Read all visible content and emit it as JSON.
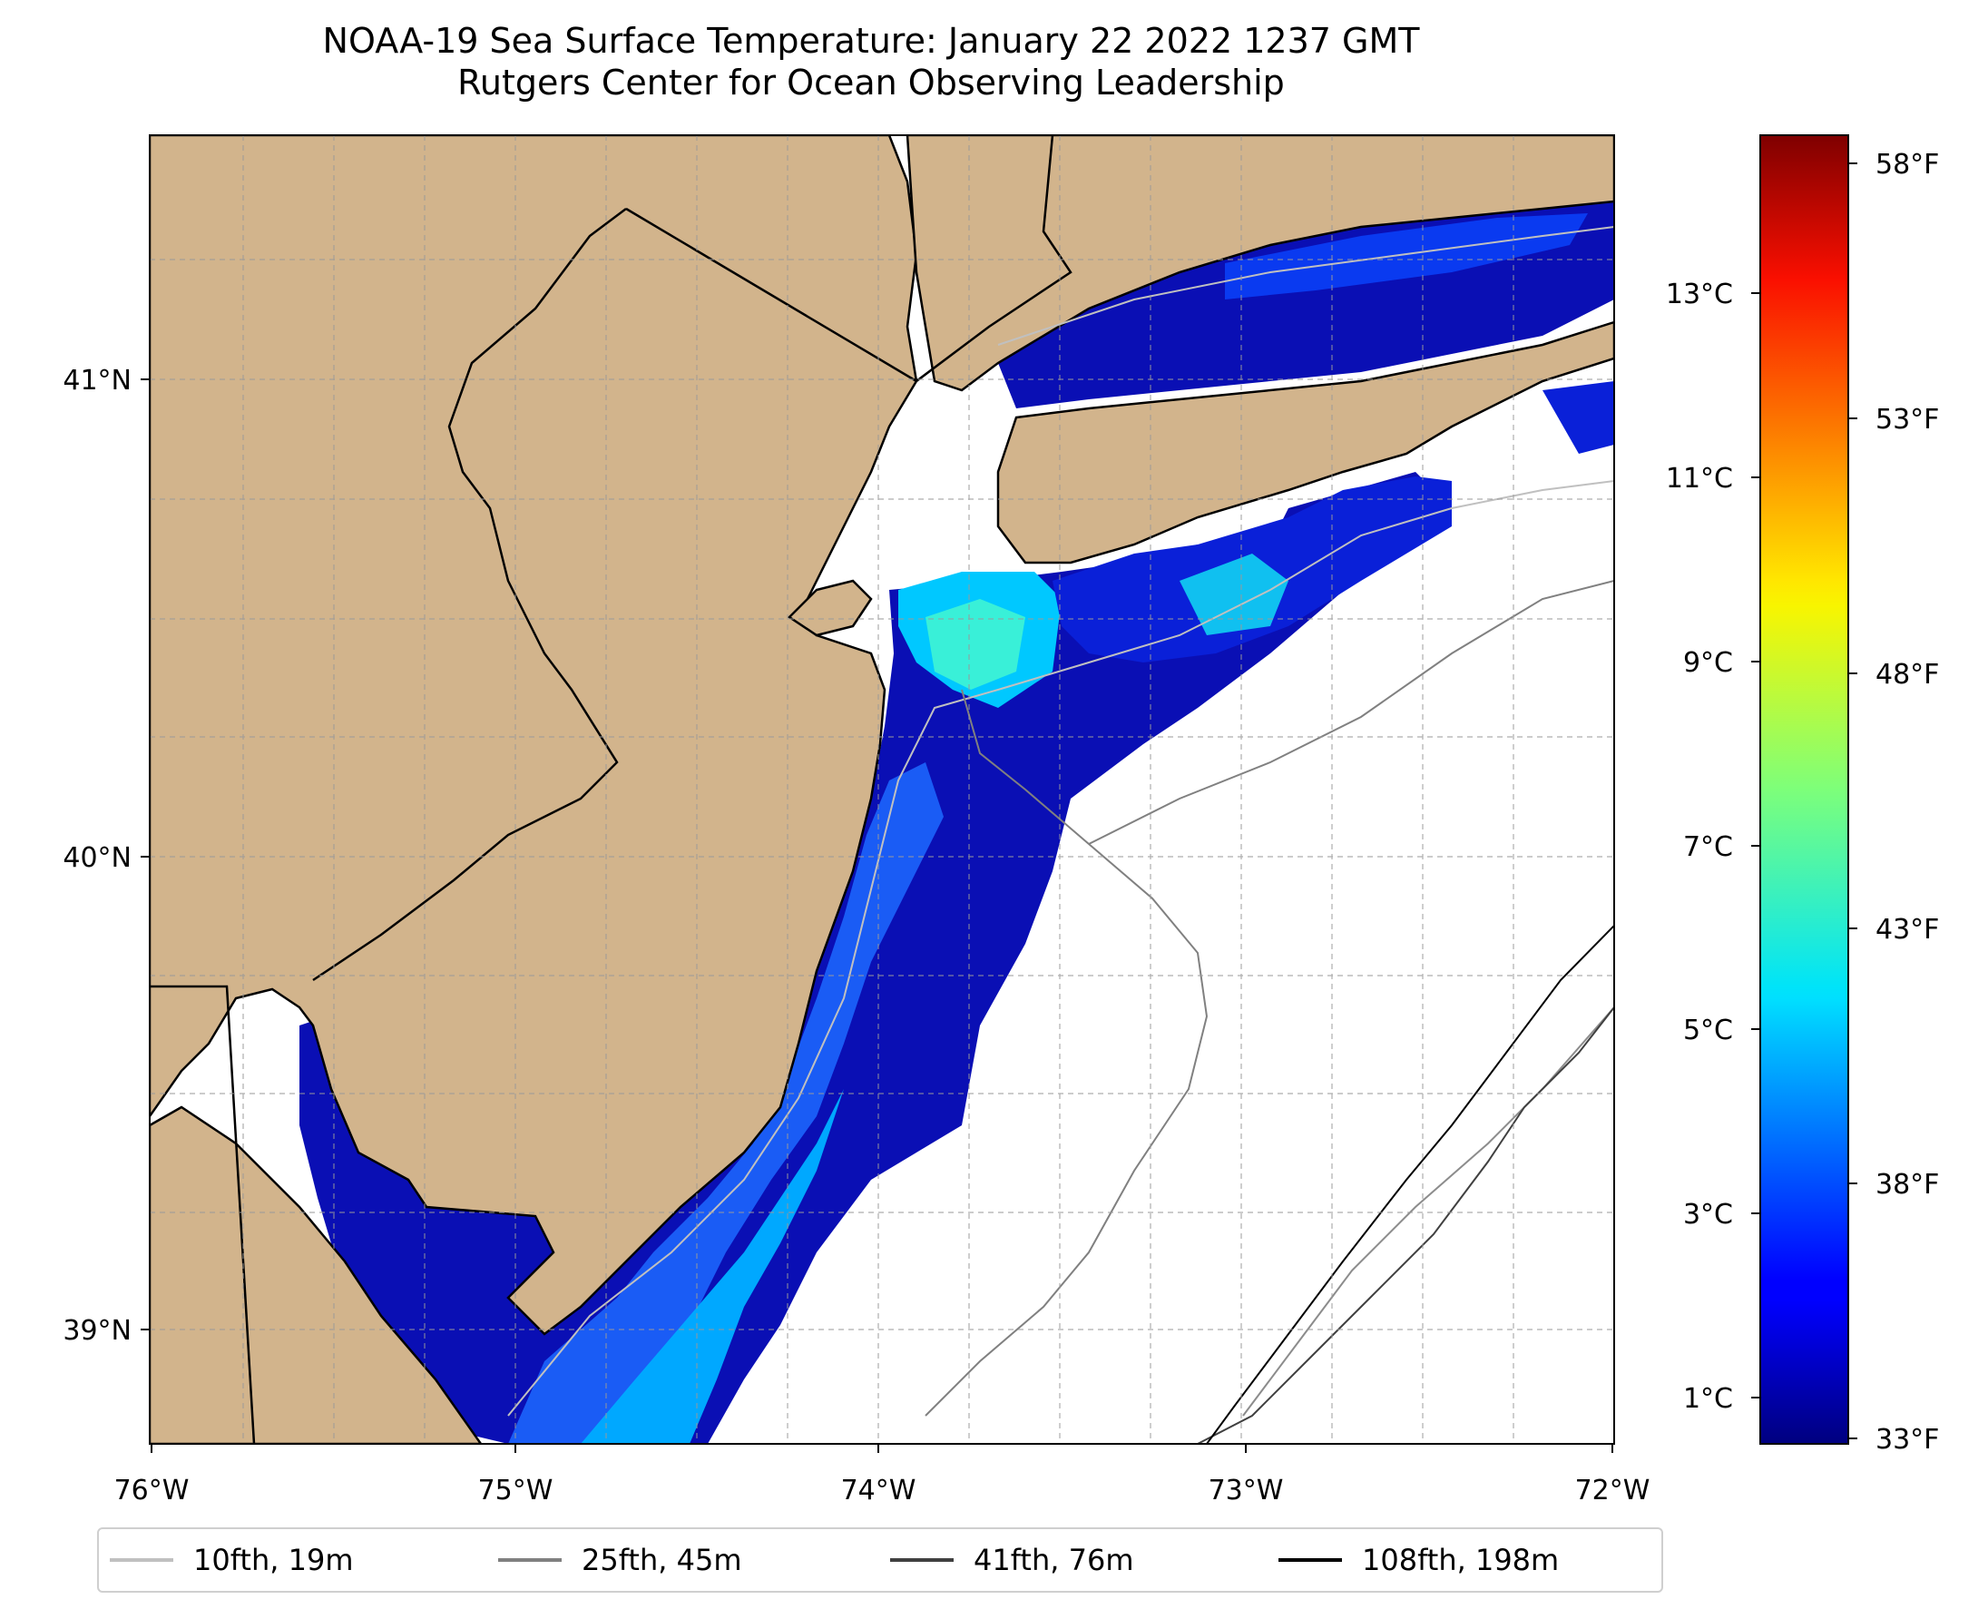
{
  "title": {
    "line1": "NOAA-19 Sea Surface Temperature: January 22 2022 1237 GMT",
    "line2": "Rutgers Center for Ocean Observing Leadership"
  },
  "map": {
    "lon_labels": [
      "76°W",
      "75°W",
      "74°W",
      "73°W",
      "72°W"
    ],
    "lat_labels": [
      "41°N",
      "40°N",
      "39°N"
    ],
    "lon_range": [
      -76,
      -72
    ],
    "lat_range": [
      38.75,
      41.5
    ],
    "land_color": "#d2b48c",
    "ocean_nodata_color": "#ffffff",
    "gridlines": true
  },
  "colorbar": {
    "colormap": "jet",
    "celsius_labels": [
      "13°C",
      "11°C",
      "9°C",
      "7°C",
      "5°C",
      "3°C",
      "1°C"
    ],
    "celsius_values": [
      13,
      11,
      9,
      7,
      5,
      3,
      1
    ],
    "fahrenheit_labels": [
      "58°F",
      "53°F",
      "48°F",
      "43°F",
      "38°F",
      "33°F"
    ],
    "fahrenheit_values": [
      58,
      53,
      48,
      43,
      38,
      33
    ]
  },
  "legend": {
    "items": [
      {
        "label": "10fth, 19m",
        "color": "#c0c0c0"
      },
      {
        "label": "25fth, 45m",
        "color": "#808080"
      },
      {
        "label": "41fth, 76m",
        "color": "#404040"
      },
      {
        "label": "108fth, 198m",
        "color": "#000000"
      }
    ]
  }
}
